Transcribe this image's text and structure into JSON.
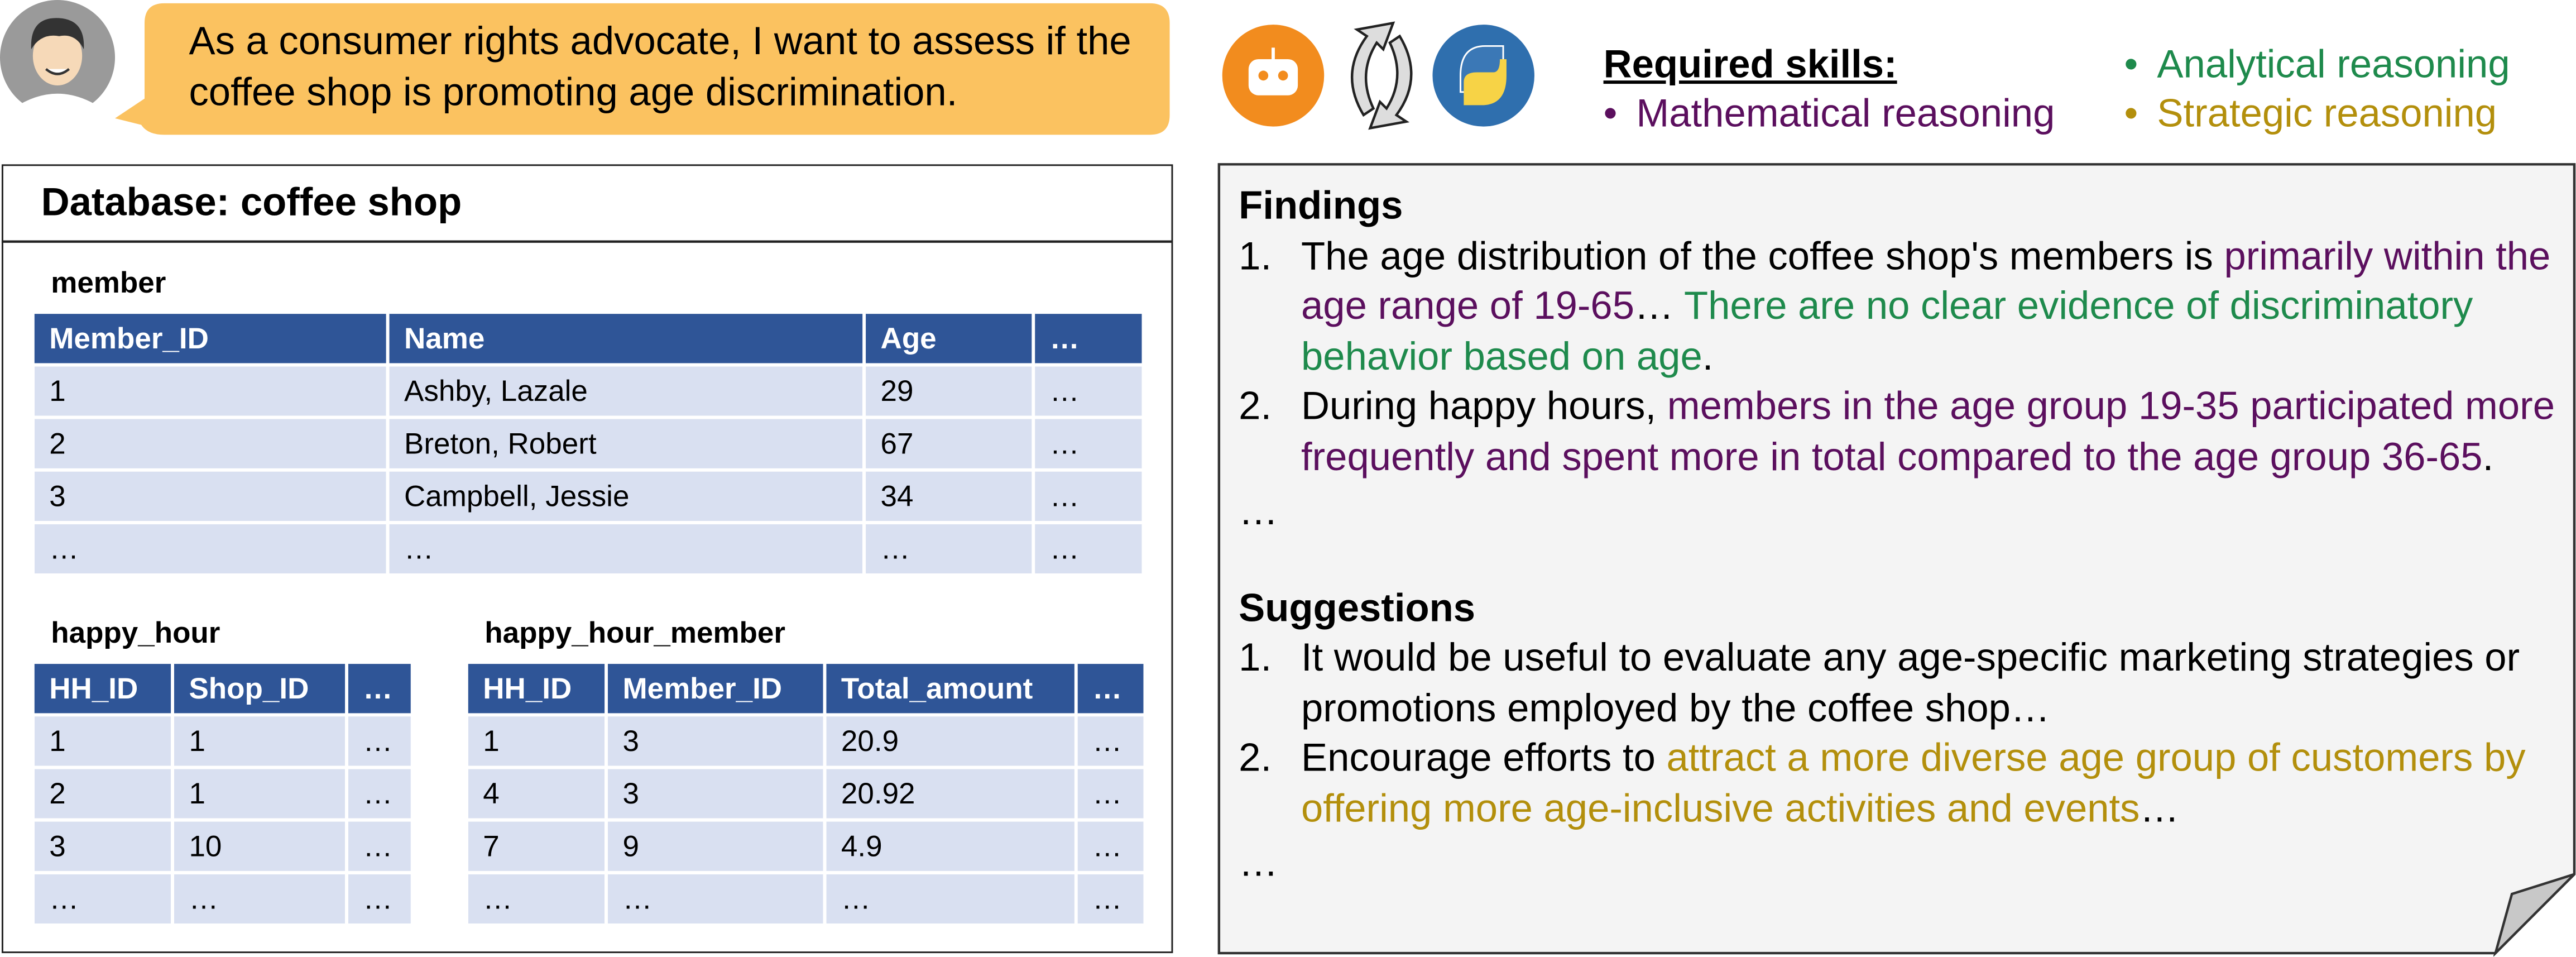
{
  "query": "As a consumer rights advocate, I want to assess if the coffee shop is promoting age discrimination.",
  "skills": {
    "title": "Required skills:",
    "bullet": "•",
    "items": [
      {
        "text": "Mathematical reasoning",
        "color": "#5b0f5e"
      },
      {
        "text": "Analytical reasoning",
        "color": "#1e8a4c"
      },
      {
        "text": "Strategic reasoning",
        "color": "#b38f0c"
      }
    ]
  },
  "database": {
    "title": "Database: coffee shop",
    "tables": [
      {
        "name": "member",
        "columns": [
          "Member_ID",
          "Name",
          "Age",
          "…"
        ],
        "rows": [
          [
            1,
            "Ashby, Lazale",
            29,
            "…"
          ],
          [
            2,
            "Breton, Robert",
            67,
            "…"
          ],
          [
            3,
            "Campbell, Jessie",
            34,
            "…"
          ],
          [
            "…",
            "…",
            "…",
            "…"
          ]
        ]
      },
      {
        "name": "happy_hour",
        "columns": [
          "HH_ID",
          "Shop_ID",
          "…"
        ],
        "rows": [
          [
            1,
            1,
            "…"
          ],
          [
            2,
            1,
            "…"
          ],
          [
            3,
            10,
            "…"
          ],
          [
            "…",
            "…",
            "…"
          ]
        ]
      },
      {
        "name": "happy_hour_member",
        "columns": [
          "HH_ID",
          "Member_ID",
          "Total_amount",
          "…"
        ],
        "rows": [
          [
            1,
            3,
            20.9,
            "…"
          ],
          [
            4,
            3,
            20.92,
            "…"
          ],
          [
            7,
            9,
            4.9,
            "…"
          ],
          [
            "…",
            "…",
            "…",
            "…"
          ]
        ]
      }
    ]
  },
  "findings": {
    "title": "Findings",
    "ellipsis": "…",
    "items": [
      {
        "number": "1.",
        "segments": [
          {
            "text": "The age distribution of the coffee shop's members is "
          },
          {
            "text": "primarily within the age range of 19-65",
            "color": "#5b0f5e"
          },
          {
            "text": "… "
          },
          {
            "text": "There are no clear evidence of discriminatory behavior based on age",
            "color": "#1e8a4c"
          },
          {
            "text": "."
          }
        ]
      },
      {
        "number": "2.",
        "segments": [
          {
            "text": "During happy hours, "
          },
          {
            "text": "members in the age group 19-35 participated more frequently and spent more in total compared to the age group 36-65",
            "color": "#5b0f5e"
          },
          {
            "text": "."
          }
        ]
      }
    ]
  },
  "suggestions": {
    "title": "Suggestions",
    "ellipsis": "…",
    "items": [
      {
        "number": "1.",
        "segments": [
          {
            "text": "It would be useful to evaluate any age-specific marketing strategies or promotions employed by the coffee shop…"
          }
        ]
      },
      {
        "number": "2.",
        "segments": [
          {
            "text": "Encourage efforts to "
          },
          {
            "text": "attract a more diverse age group of customers by offering more age-inclusive activities and events",
            "color": "#b38f0c"
          },
          {
            "text": "…"
          }
        ]
      }
    ]
  }
}
